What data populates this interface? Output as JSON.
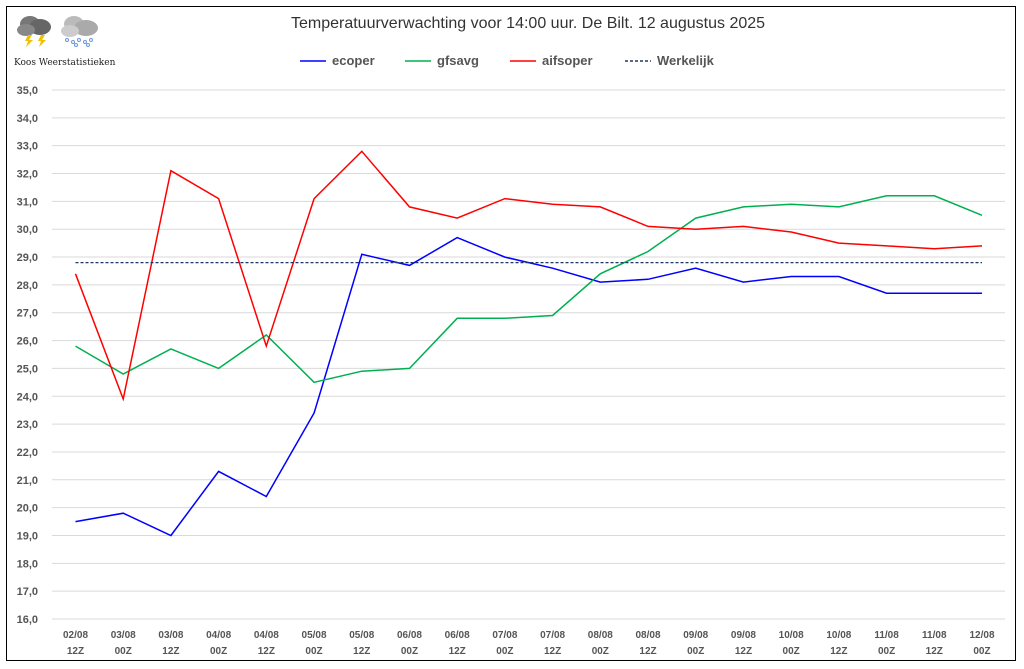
{
  "logo": {
    "text": "Koos Weerstatistieken",
    "icons": [
      "thunderstorm-cloud-icon",
      "snow-cloud-icon"
    ]
  },
  "chart_data": {
    "type": "line",
    "title": "Temperatuurverwachting voor 14:00 uur. De Bilt. 12 augustus 2025",
    "xlabel": "",
    "ylabel": "",
    "ylim": [
      16,
      35
    ],
    "ytick_step": 1,
    "grid": true,
    "legend_placement": "top",
    "categories": [
      [
        "02/08",
        "12Z"
      ],
      [
        "03/08",
        "00Z"
      ],
      [
        "03/08",
        "12Z"
      ],
      [
        "04/08",
        "00Z"
      ],
      [
        "04/08",
        "12Z"
      ],
      [
        "05/08",
        "00Z"
      ],
      [
        "05/08",
        "12Z"
      ],
      [
        "06/08",
        "00Z"
      ],
      [
        "06/08",
        "12Z"
      ],
      [
        "07/08",
        "00Z"
      ],
      [
        "07/08",
        "12Z"
      ],
      [
        "08/08",
        "00Z"
      ],
      [
        "08/08",
        "12Z"
      ],
      [
        "09/08",
        "00Z"
      ],
      [
        "09/08",
        "12Z"
      ],
      [
        "10/08",
        "00Z"
      ],
      [
        "10/08",
        "12Z"
      ],
      [
        "11/08",
        "00Z"
      ],
      [
        "11/08",
        "12Z"
      ],
      [
        "12/08",
        "00Z"
      ]
    ],
    "series": [
      {
        "name": "ecoper",
        "color": "#0000ff",
        "dash": false,
        "values": [
          19.5,
          19.8,
          19.0,
          21.3,
          20.4,
          23.4,
          29.1,
          28.7,
          29.7,
          29.0,
          28.6,
          28.1,
          28.2,
          28.6,
          28.1,
          28.3,
          28.3,
          27.7,
          27.7,
          27.7
        ]
      },
      {
        "name": "gfsavg",
        "color": "#00b050",
        "dash": false,
        "values": [
          25.8,
          24.8,
          25.7,
          25.0,
          26.2,
          24.5,
          24.9,
          25.0,
          26.8,
          26.8,
          26.9,
          28.4,
          29.2,
          30.4,
          30.8,
          30.9,
          30.8,
          31.2,
          31.2,
          30.5
        ]
      },
      {
        "name": "aifsoper",
        "color": "#ff0000",
        "dash": false,
        "values": [
          28.4,
          23.9,
          32.1,
          31.1,
          25.8,
          31.1,
          32.8,
          30.8,
          30.4,
          31.1,
          30.9,
          30.8,
          30.1,
          30.0,
          30.1,
          29.9,
          29.5,
          29.4,
          29.3,
          29.4
        ]
      },
      {
        "name": "Werkelijk",
        "color": "#1f3864",
        "dash": true,
        "values": [
          28.8,
          28.8,
          28.8,
          28.8,
          28.8,
          28.8,
          28.8,
          28.8,
          28.8,
          28.8,
          28.8,
          28.8,
          28.8,
          28.8,
          28.8,
          28.8,
          28.8,
          28.8,
          28.8,
          28.8
        ]
      }
    ]
  }
}
